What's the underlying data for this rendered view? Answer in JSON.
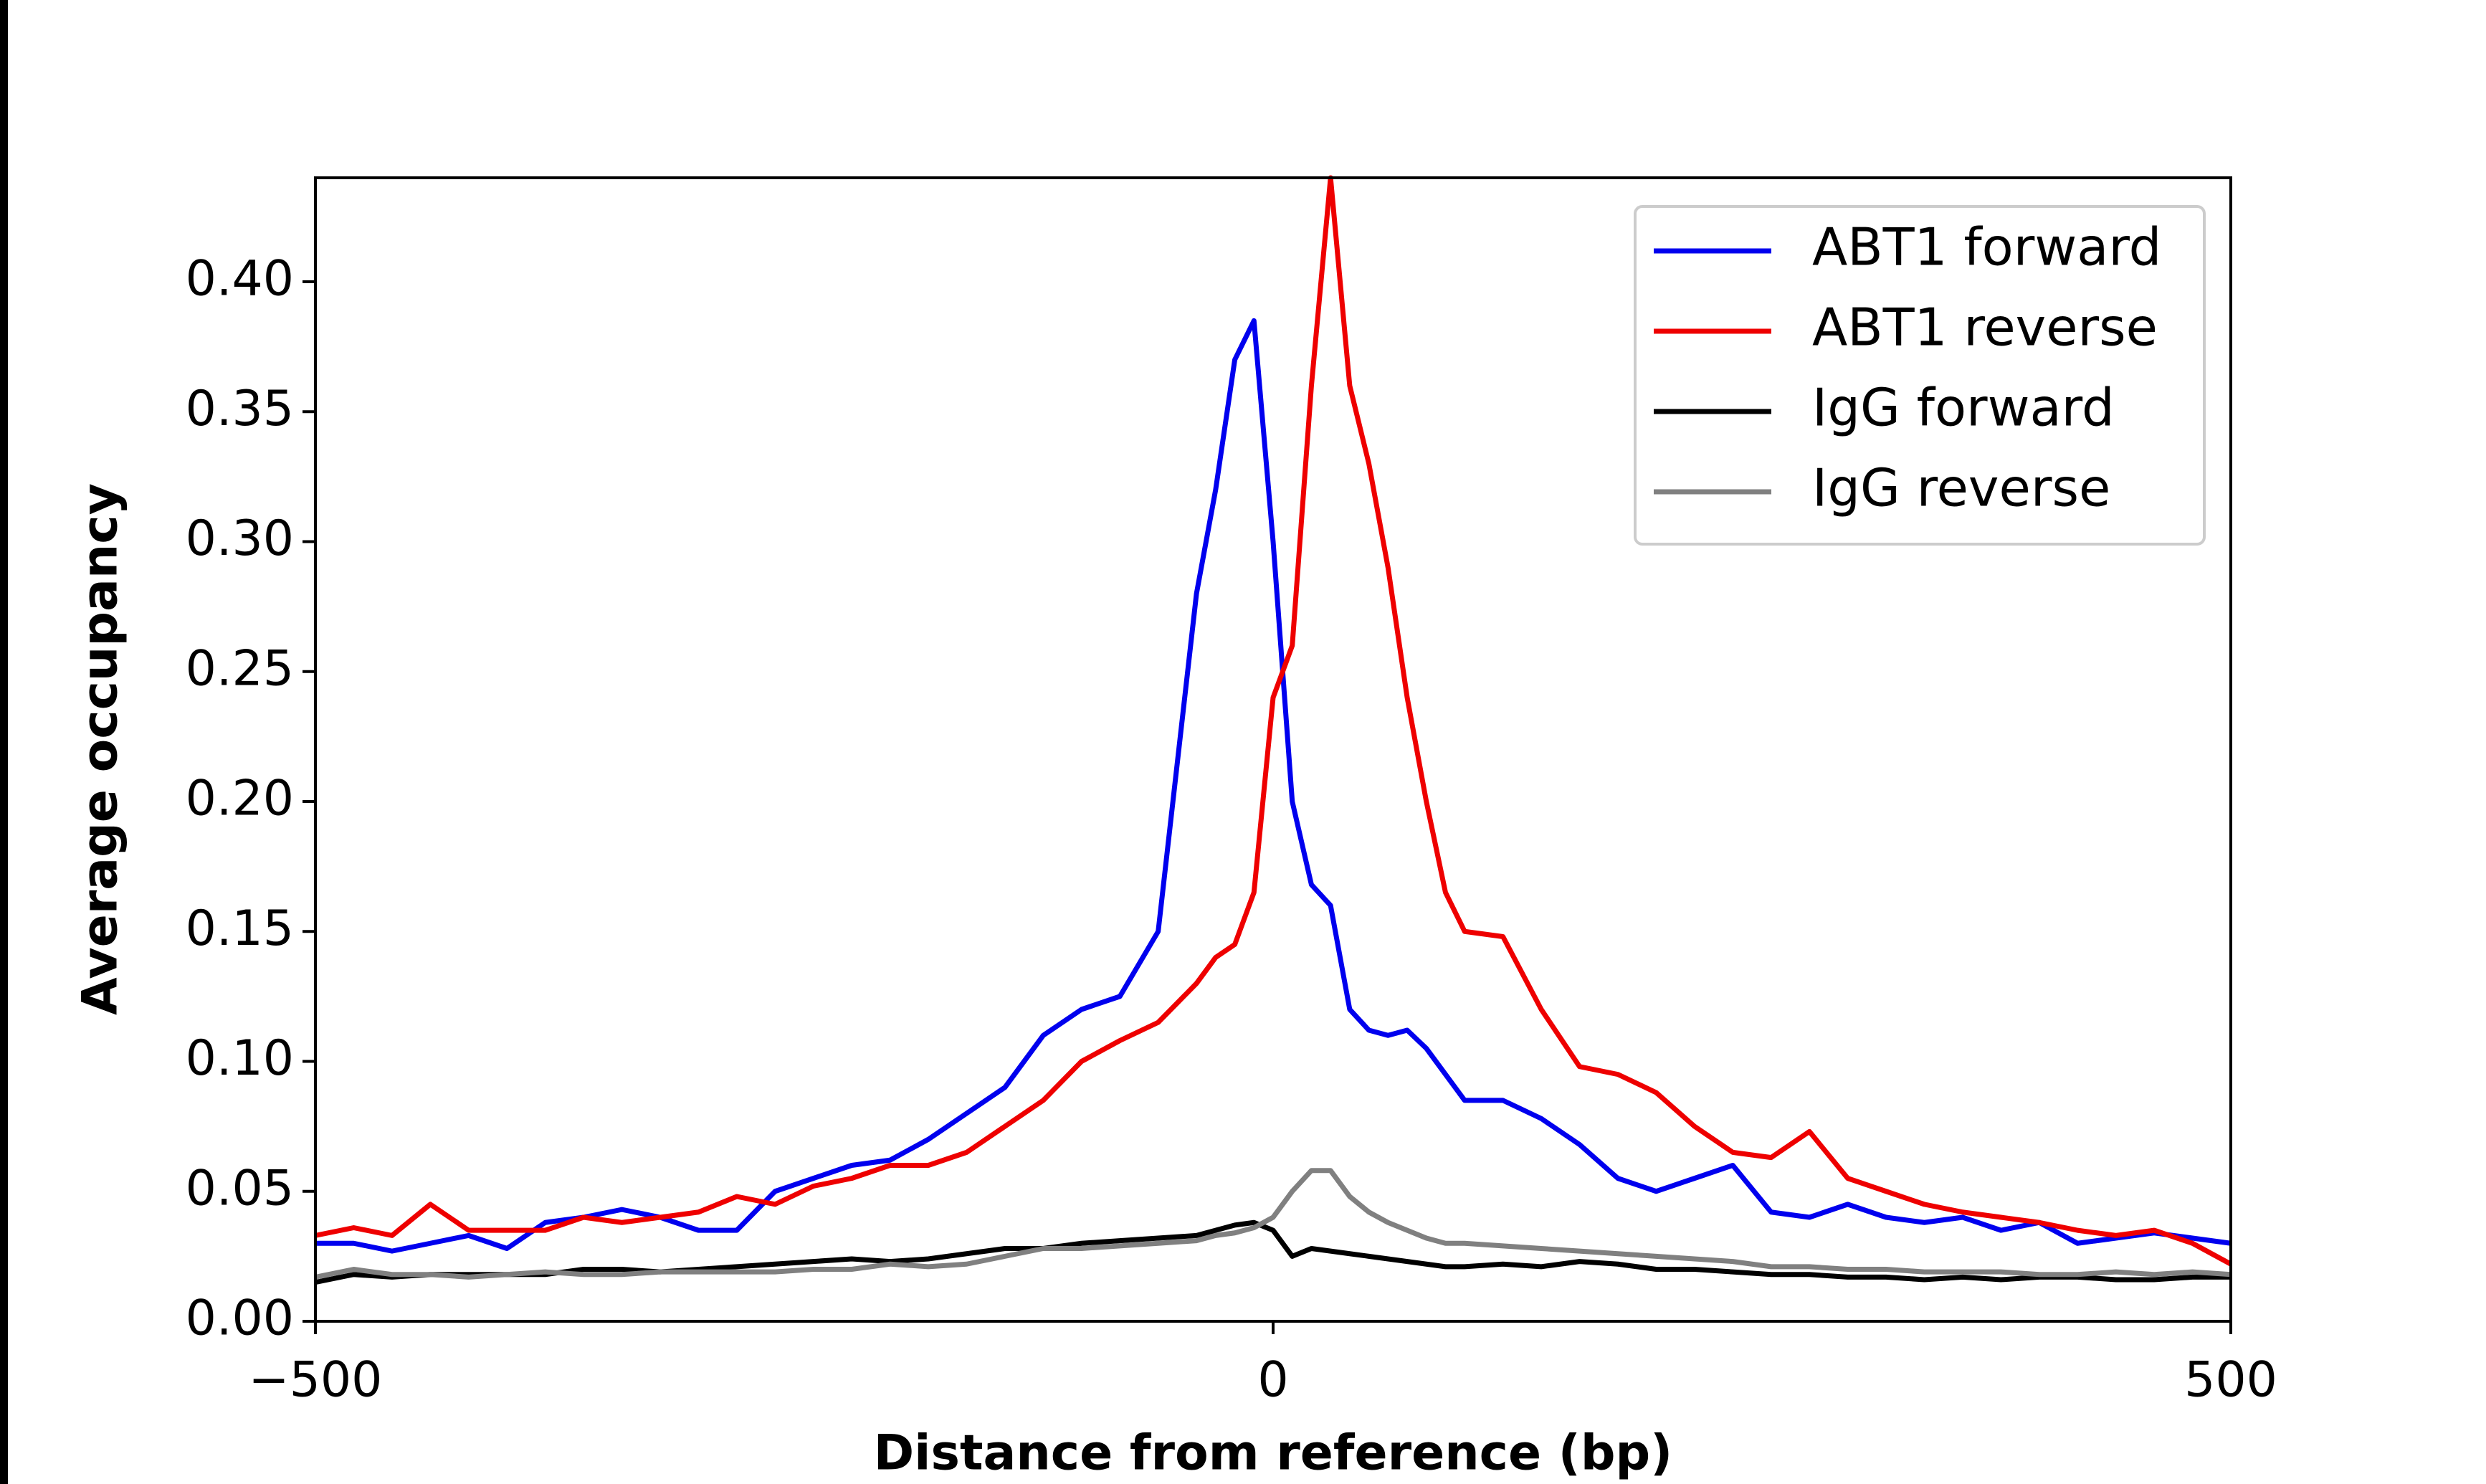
{
  "chart_data": {
    "type": "line",
    "xlabel": "Distance from reference (bp)",
    "ylabel": "Average occupancy",
    "xlim": [
      -500,
      500
    ],
    "ylim": [
      0,
      0.44
    ],
    "xticks": [
      {
        "value": -500,
        "label": "−500"
      },
      0,
      500
    ],
    "yticks": [
      {
        "value": 0,
        "label": "0.00"
      },
      {
        "value": 0.05,
        "label": "0.05"
      },
      {
        "value": 0.1,
        "label": "0.10"
      },
      {
        "value": 0.15,
        "label": "0.15"
      },
      {
        "value": 0.2,
        "label": "0.20"
      },
      {
        "value": 0.25,
        "label": "0.25"
      },
      {
        "value": 0.3,
        "label": "0.30"
      },
      {
        "value": 0.35,
        "label": "0.35"
      },
      {
        "value": 0.4,
        "label": "0.40"
      }
    ],
    "legend": "upper right",
    "grid": false,
    "x": [
      -500,
      -480,
      -460,
      -440,
      -420,
      -400,
      -380,
      -360,
      -340,
      -320,
      -300,
      -280,
      -260,
      -240,
      -220,
      -200,
      -180,
      -160,
      -140,
      -120,
      -100,
      -80,
      -60,
      -40,
      -30,
      -20,
      -10,
      0,
      10,
      20,
      30,
      40,
      50,
      60,
      70,
      80,
      90,
      100,
      120,
      140,
      160,
      180,
      200,
      220,
      240,
      260,
      280,
      300,
      320,
      340,
      360,
      380,
      400,
      420,
      440,
      460,
      480,
      500
    ],
    "series": [
      {
        "name": "ABT1 forward",
        "color": "#0000ee",
        "values": [
          0.03,
          0.03,
          0.027,
          0.03,
          0.033,
          0.028,
          0.038,
          0.04,
          0.043,
          0.04,
          0.035,
          0.035,
          0.05,
          0.055,
          0.06,
          0.062,
          0.07,
          0.08,
          0.09,
          0.11,
          0.12,
          0.125,
          0.15,
          0.28,
          0.32,
          0.37,
          0.385,
          0.3,
          0.2,
          0.168,
          0.16,
          0.12,
          0.112,
          0.11,
          0.112,
          0.105,
          0.095,
          0.085,
          0.085,
          0.078,
          0.068,
          0.055,
          0.05,
          0.055,
          0.06,
          0.042,
          0.04,
          0.045,
          0.04,
          0.038,
          0.04,
          0.035,
          0.038,
          0.03,
          0.032,
          0.034,
          0.032,
          0.03
        ]
      },
      {
        "name": "ABT1 reverse",
        "color": "#ee0000",
        "values": [
          0.033,
          0.036,
          0.033,
          0.045,
          0.035,
          0.035,
          0.035,
          0.04,
          0.038,
          0.04,
          0.042,
          0.048,
          0.045,
          0.052,
          0.055,
          0.06,
          0.06,
          0.065,
          0.075,
          0.085,
          0.1,
          0.108,
          0.115,
          0.13,
          0.14,
          0.145,
          0.165,
          0.24,
          0.26,
          0.36,
          0.44,
          0.36,
          0.33,
          0.29,
          0.24,
          0.2,
          0.165,
          0.15,
          0.148,
          0.12,
          0.098,
          0.095,
          0.088,
          0.075,
          0.065,
          0.063,
          0.073,
          0.055,
          0.05,
          0.045,
          0.042,
          0.04,
          0.038,
          0.035,
          0.033,
          0.035,
          0.03,
          0.022
        ]
      },
      {
        "name": "IgG forward",
        "color": "#000000",
        "values": [
          0.015,
          0.018,
          0.017,
          0.018,
          0.018,
          0.018,
          0.018,
          0.02,
          0.02,
          0.019,
          0.02,
          0.021,
          0.022,
          0.023,
          0.024,
          0.023,
          0.024,
          0.026,
          0.028,
          0.028,
          0.03,
          0.031,
          0.032,
          0.033,
          0.035,
          0.037,
          0.038,
          0.035,
          0.025,
          0.028,
          0.027,
          0.026,
          0.025,
          0.024,
          0.023,
          0.022,
          0.021,
          0.021,
          0.022,
          0.021,
          0.023,
          0.022,
          0.02,
          0.02,
          0.019,
          0.018,
          0.018,
          0.017,
          0.017,
          0.016,
          0.017,
          0.016,
          0.017,
          0.017,
          0.016,
          0.016,
          0.017,
          0.017
        ]
      },
      {
        "name": "IgG reverse",
        "color": "#808080",
        "values": [
          0.017,
          0.02,
          0.018,
          0.018,
          0.017,
          0.018,
          0.019,
          0.018,
          0.018,
          0.019,
          0.019,
          0.019,
          0.019,
          0.02,
          0.02,
          0.022,
          0.021,
          0.022,
          0.025,
          0.028,
          0.028,
          0.029,
          0.03,
          0.031,
          0.033,
          0.034,
          0.036,
          0.04,
          0.05,
          0.058,
          0.058,
          0.048,
          0.042,
          0.038,
          0.035,
          0.032,
          0.03,
          0.03,
          0.029,
          0.028,
          0.027,
          0.026,
          0.025,
          0.024,
          0.023,
          0.021,
          0.021,
          0.02,
          0.02,
          0.019,
          0.019,
          0.019,
          0.018,
          0.018,
          0.019,
          0.018,
          0.019,
          0.018
        ]
      }
    ]
  }
}
